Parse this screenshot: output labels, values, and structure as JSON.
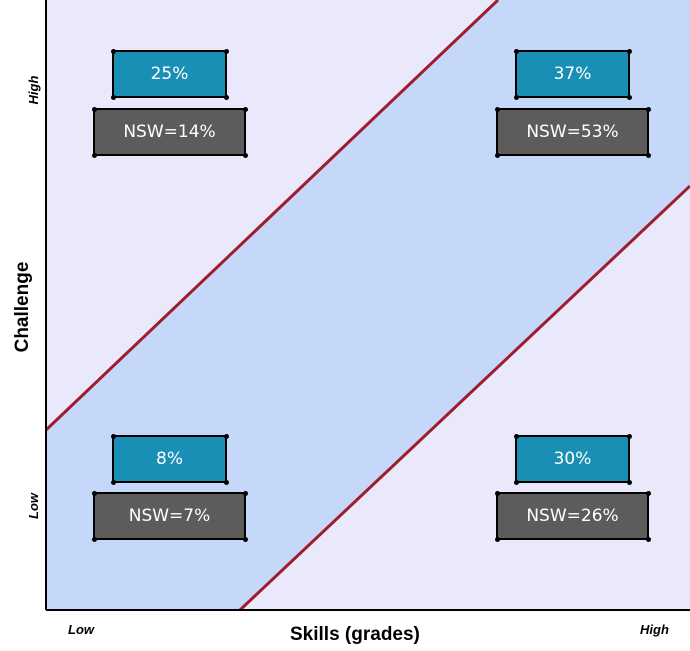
{
  "x_axis": {
    "title": "Skills (grades)",
    "low_label": "Low",
    "high_label": "High"
  },
  "y_axis": {
    "title": "Challenge",
    "low_label": "Low",
    "high_label": "High"
  },
  "quadrants": {
    "high_challenge_low_skill": {
      "percent": "25%",
      "nsw": "NSW=14%"
    },
    "high_challenge_high_skill": {
      "percent": "37%",
      "nsw": "NSW=53%"
    },
    "low_challenge_low_skill": {
      "percent": "8%",
      "nsw": "NSW=7%"
    },
    "low_challenge_high_skill": {
      "percent": "30%",
      "nsw": "NSW=26%"
    }
  },
  "colors": {
    "background_zone": "#e9e9fb",
    "flow_band": "#c6d8f9",
    "boundary_line": "#a01c2c",
    "percent_box": "#1a8fb6",
    "nsw_box": "#5c5c5c"
  }
}
